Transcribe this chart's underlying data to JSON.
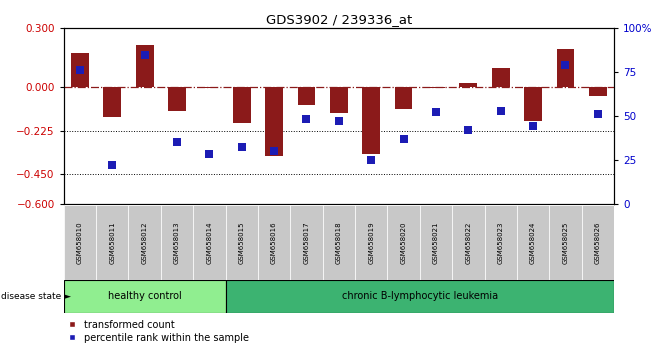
{
  "title": "GDS3902 / 239336_at",
  "samples": [
    "GSM658010",
    "GSM658011",
    "GSM658012",
    "GSM658013",
    "GSM658014",
    "GSM658015",
    "GSM658016",
    "GSM658017",
    "GSM658018",
    "GSM658019",
    "GSM658020",
    "GSM658021",
    "GSM658022",
    "GSM658023",
    "GSM658024",
    "GSM658025",
    "GSM658026"
  ],
  "red_values": [
    0.175,
    -0.155,
    0.215,
    -0.125,
    -0.008,
    -0.185,
    -0.355,
    -0.095,
    -0.135,
    -0.345,
    -0.115,
    -0.008,
    0.02,
    0.095,
    -0.175,
    0.195,
    -0.048
  ],
  "blue_values": [
    76,
    22,
    85,
    35,
    28,
    32,
    30,
    48,
    47,
    25,
    37,
    52,
    42,
    53,
    44,
    79,
    51
  ],
  "ylim_left": [
    -0.6,
    0.3
  ],
  "ylim_right": [
    0,
    100
  ],
  "yticks_left": [
    -0.6,
    -0.45,
    -0.225,
    0.0,
    0.3
  ],
  "yticks_right": [
    0,
    25,
    50,
    75,
    100
  ],
  "hline_y": 0.0,
  "dotted_lines": [
    -0.225,
    -0.45
  ],
  "healthy_count": 5,
  "healthy_label": "healthy control",
  "disease_label": "chronic B-lymphocytic leukemia",
  "legend_red": "transformed count",
  "legend_blue": "percentile rank within the sample",
  "disease_state_label": "disease state",
  "bar_color_red": "#8B1A1A",
  "bar_color_blue": "#1C1CB4",
  "hline_color": "#8B1A1A",
  "dot_line_color": "#000000",
  "healthy_bg": "#90EE90",
  "disease_bg": "#3CB371",
  "sample_box_bg": "#C8C8C8",
  "tick_label_color_left": "#CC0000",
  "tick_label_color_right": "#0000CC",
  "bar_width": 0.55,
  "blue_marker_size": 36
}
